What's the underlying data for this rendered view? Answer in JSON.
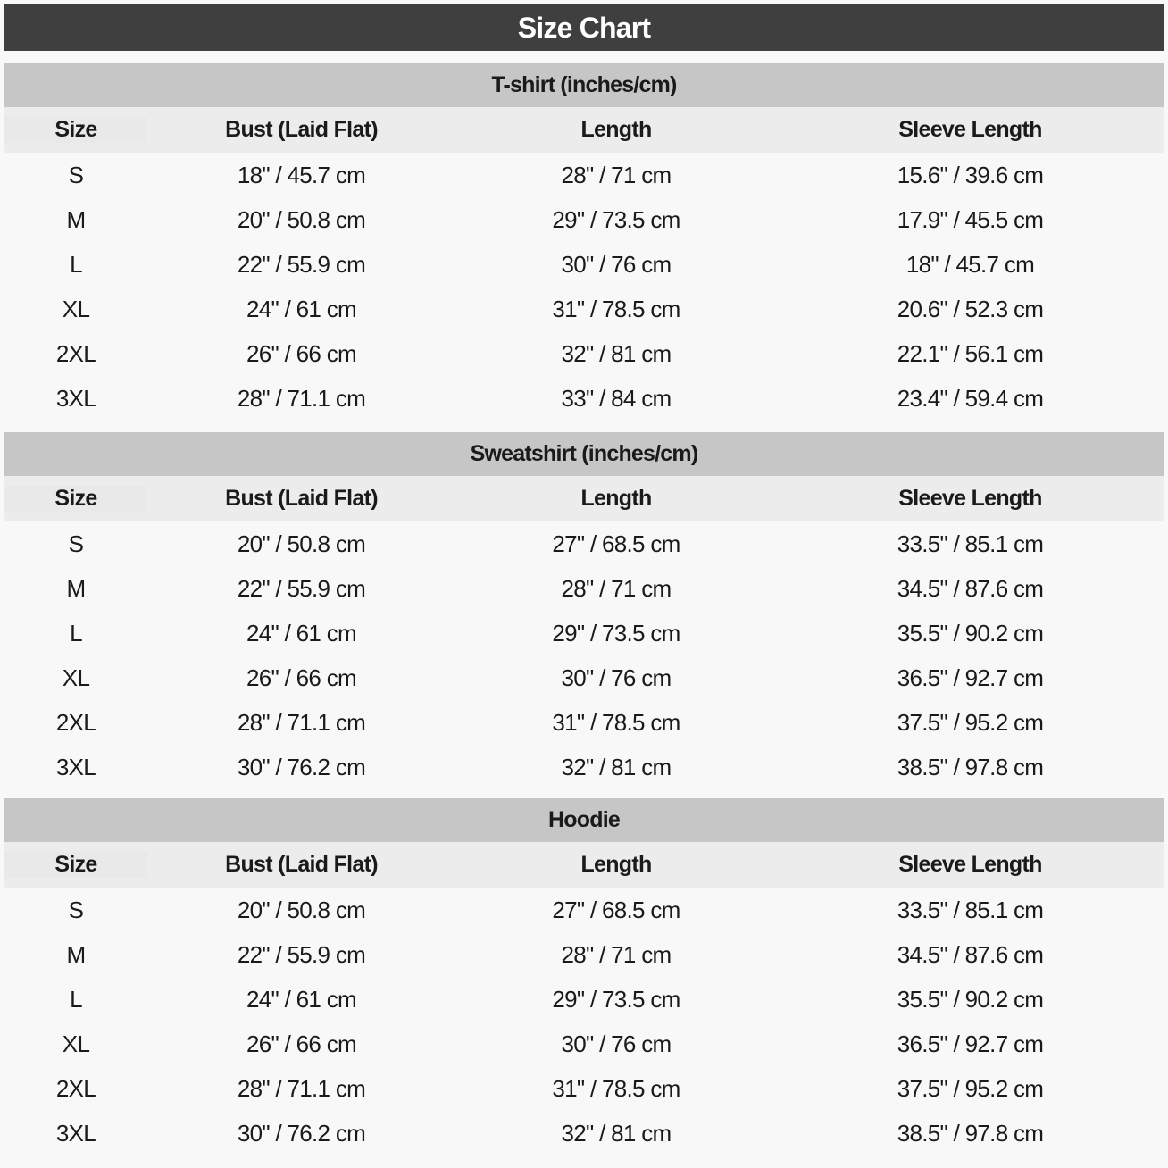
{
  "title": "Size Chart",
  "sections": [
    {
      "title": "T-shirt (inches/cm)",
      "columns": [
        "Size",
        "Bust (Laid Flat)",
        "Length",
        "Sleeve Length"
      ],
      "rows": [
        [
          "S",
          "18\" / 45.7 cm",
          "28\" / 71 cm",
          "15.6\" / 39.6 cm"
        ],
        [
          "M",
          "20\" / 50.8 cm",
          "29\" / 73.5 cm",
          "17.9\" / 45.5 cm"
        ],
        [
          "L",
          "22\" / 55.9 cm",
          "30\" / 76 cm",
          "18\" / 45.7 cm"
        ],
        [
          "XL",
          "24\" / 61 cm",
          "31\" / 78.5 cm",
          "20.6\" / 52.3 cm"
        ],
        [
          "2XL",
          "26\" / 66 cm",
          "32\" / 81 cm",
          "22.1\" / 56.1 cm"
        ],
        [
          "3XL",
          "28\" / 71.1 cm",
          "33\" / 84 cm",
          "23.4\" / 59.4 cm"
        ]
      ]
    },
    {
      "title": "Sweatshirt (inches/cm)",
      "columns": [
        "Size",
        "Bust (Laid Flat)",
        "Length",
        "Sleeve Length"
      ],
      "rows": [
        [
          "S",
          "20\" / 50.8 cm",
          "27\" / 68.5 cm",
          "33.5\" / 85.1 cm"
        ],
        [
          "M",
          "22\" / 55.9 cm",
          "28\" / 71 cm",
          "34.5\" / 87.6 cm"
        ],
        [
          "L",
          "24\" / 61 cm",
          "29\" / 73.5 cm",
          "35.5\" / 90.2 cm"
        ],
        [
          "XL",
          "26\" / 66 cm",
          "30\" / 76 cm",
          "36.5\" / 92.7 cm"
        ],
        [
          "2XL",
          "28\" / 71.1 cm",
          "31\" / 78.5 cm",
          "37.5\" / 95.2 cm"
        ],
        [
          "3XL",
          "30\" / 76.2 cm",
          "32\" / 81 cm",
          "38.5\" / 97.8 cm"
        ]
      ]
    },
    {
      "title": "Hoodie",
      "columns": [
        "Size",
        "Bust (Laid Flat)",
        "Length",
        "Sleeve Length"
      ],
      "rows": [
        [
          "S",
          "20\" / 50.8 cm",
          "27\" / 68.5 cm",
          "33.5\" / 85.1 cm"
        ],
        [
          "M",
          "22\" / 55.9 cm",
          "28\" / 71 cm",
          "34.5\" / 87.6 cm"
        ],
        [
          "L",
          "24\" / 61 cm",
          "29\" / 73.5 cm",
          "35.5\" / 90.2 cm"
        ],
        [
          "XL",
          "26\" / 66 cm",
          "30\" / 76 cm",
          "36.5\" / 92.7 cm"
        ],
        [
          "2XL",
          "28\" / 71.1 cm",
          "31\" / 78.5 cm",
          "37.5\" / 95.2 cm"
        ],
        [
          "3XL",
          "30\" / 76.2 cm",
          "32\" / 81 cm",
          "38.5\" / 97.8 cm"
        ]
      ]
    }
  ]
}
